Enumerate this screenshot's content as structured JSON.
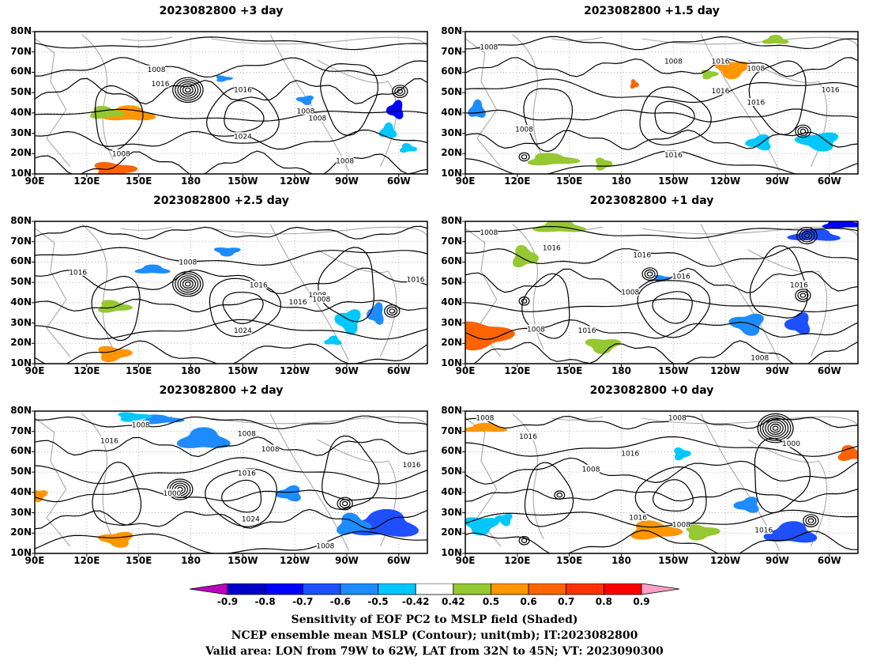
{
  "panels": [
    {
      "title": "2023082800 +3 day",
      "labels": [
        "1008",
        "1016",
        "1016",
        "1024",
        "1008",
        "1008",
        "1008",
        "1008"
      ]
    },
    {
      "title": "2023082800 +1.5 day",
      "labels": [
        "1008",
        "1008",
        "1016",
        "1008",
        "1016",
        "1016",
        "1008",
        "1016",
        "1016"
      ]
    },
    {
      "title": "2023082800 +2.5 day",
      "labels": [
        "1016",
        "1008",
        "1016",
        "1024",
        "1008",
        "1008",
        "1016",
        "1016"
      ]
    },
    {
      "title": "2023082800 +1 day",
      "labels": [
        "1008",
        "1016",
        "1016",
        "1008",
        "1016",
        "1008",
        "1016",
        "1008",
        "1016"
      ]
    },
    {
      "title": "2023082800 +2 day",
      "labels": [
        "1008",
        "1016",
        "1008",
        "1008",
        "1016",
        "1000",
        "1024",
        "1008",
        "1016"
      ]
    },
    {
      "title": "2023082800 +0 day",
      "labels": [
        "1008",
        "1016",
        "1008",
        "1016",
        "1008",
        "1000",
        "1016",
        "1008",
        "1016"
      ]
    }
  ],
  "axes": {
    "lat_labels": [
      "80N",
      "70N",
      "60N",
      "50N",
      "40N",
      "30N",
      "20N",
      "10N"
    ],
    "lon_labels": [
      "90E",
      "120E",
      "150E",
      "180",
      "150W",
      "120W",
      "90W",
      "60W"
    ]
  },
  "colorbar": {
    "ticks": [
      "-0.9",
      "-0.8",
      "-0.7",
      "-0.6",
      "-0.5",
      "-0.42",
      "0.42",
      "0.5",
      "0.6",
      "0.7",
      "0.8",
      "0.9"
    ],
    "colors": [
      "#c000c0",
      "#0000c8",
      "#0000ff",
      "#1e50ff",
      "#1e8cff",
      "#00c8ff",
      "#ffffff",
      "#96c832",
      "#ff9600",
      "#ff6400",
      "#ff3200",
      "#ff0000",
      "#ffa0c8"
    ]
  },
  "caption": {
    "line1": "Sensitivity of EOF PC2 to MSLP field (Shaded)",
    "line2": "NCEP ensemble mean MSLP (Contour); unit(mb); IT:2023082800",
    "line3": "Valid area: LON from 79W to 62W, LAT from 32N to 45N; VT: 2023090300"
  }
}
